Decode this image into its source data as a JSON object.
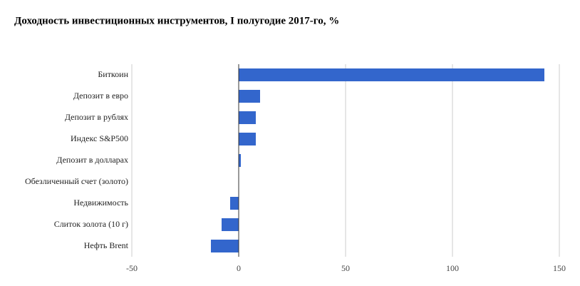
{
  "chart_data": {
    "type": "bar",
    "orientation": "horizontal",
    "title": "Доходность инвестиционных инструментов, I полугодие 2017-го, %",
    "categories": [
      "Биткоин",
      "Депозит в евро",
      "Депозит в рублях",
      "Индекс S&P500",
      "Депозит в долларах",
      "Обезличенный счет (золото)",
      "Недвижимость",
      "Слиток золота (10 г)",
      "Нефть Brent"
    ],
    "values": [
      143,
      10,
      8,
      8,
      1,
      0,
      -4,
      -8,
      -13
    ],
    "color": "#3366cc",
    "xlim": [
      -50,
      150
    ],
    "xticks": [
      -50,
      0,
      50,
      100,
      150
    ],
    "grid": true
  }
}
